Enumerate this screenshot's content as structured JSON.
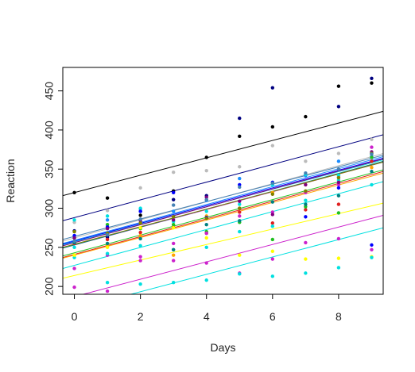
{
  "chart_data": {
    "type": "scatter",
    "title": "",
    "xlabel": "Days",
    "ylabel": "Reaction",
    "xlim": [
      -0.35,
      9.35
    ],
    "ylim": [
      190,
      480
    ],
    "xticks": [
      0,
      2,
      4,
      6,
      8
    ],
    "yticks": [
      200,
      250,
      300,
      350,
      400,
      450
    ],
    "grid": false,
    "legend": "none",
    "series": [
      {
        "color": "#000000",
        "points": [
          [
            0,
            320
          ],
          [
            1,
            313
          ],
          [
            2,
            291
          ],
          [
            3,
            322
          ],
          [
            4,
            365
          ],
          [
            5,
            392
          ],
          [
            6,
            404
          ],
          [
            7,
            417
          ],
          [
            8,
            456
          ],
          [
            9,
            460
          ]
        ],
        "line": [
          320,
          420
        ]
      },
      {
        "color": "#000080",
        "points": [
          [
            0,
            271
          ],
          [
            1,
            263
          ],
          [
            2,
            296
          ],
          [
            3,
            311
          ],
          [
            4,
            316
          ],
          [
            5,
            415
          ],
          [
            6,
            454
          ],
          [
            7,
            342
          ],
          [
            8,
            430
          ],
          [
            9,
            466
          ]
        ],
        "line": [
          288,
          390
        ]
      },
      {
        "color": "#bbbbbb",
        "points": [
          [
            0,
            282
          ],
          [
            1,
            297
          ],
          [
            2,
            326
          ],
          [
            3,
            346
          ],
          [
            4,
            348
          ],
          [
            5,
            353
          ],
          [
            6,
            380
          ],
          [
            7,
            360
          ],
          [
            8,
            370
          ],
          [
            9,
            388
          ]
        ],
        "line": [
          262,
          366
        ]
      },
      {
        "color": "#1a8cff",
        "points": [
          [
            0,
            265
          ],
          [
            1,
            285
          ],
          [
            2,
            299
          ],
          [
            3,
            296
          ],
          [
            4,
            310
          ],
          [
            5,
            338
          ],
          [
            6,
            333
          ],
          [
            7,
            342
          ],
          [
            8,
            360
          ],
          [
            9,
            366
          ]
        ],
        "line": [
          259,
          362
        ]
      },
      {
        "color": "#00e0e0",
        "points": [
          [
            0,
            285
          ],
          [
            1,
            290
          ],
          [
            2,
            300
          ],
          [
            3,
            283
          ],
          [
            4,
            296
          ],
          [
            5,
            305
          ],
          [
            6,
            330
          ],
          [
            7,
            343
          ],
          [
            8,
            336
          ],
          [
            9,
            370
          ]
        ],
        "line": [
          257,
          358
        ]
      },
      {
        "color": "#e02020",
        "points": [
          [
            0,
            255
          ],
          [
            1,
            260
          ],
          [
            2,
            269
          ],
          [
            3,
            276
          ],
          [
            4,
            268
          ],
          [
            5,
            295
          ],
          [
            6,
            281
          ],
          [
            7,
            298
          ],
          [
            8,
            305
          ],
          [
            9,
            360
          ]
        ],
        "line": [
          241,
          343
        ]
      },
      {
        "color": "#20c020",
        "points": [
          [
            0,
            262
          ],
          [
            1,
            279
          ],
          [
            2,
            274
          ],
          [
            3,
            279
          ],
          [
            4,
            270
          ],
          [
            5,
            282
          ],
          [
            6,
            260
          ],
          [
            7,
            302
          ],
          [
            8,
            294
          ],
          [
            9,
            365
          ]
        ],
        "line": [
          243,
          345
        ]
      },
      {
        "color": "#ffa500",
        "points": [
          [
            0,
            240
          ],
          [
            1,
            252
          ],
          [
            2,
            265
          ],
          [
            3,
            240
          ],
          [
            4,
            290
          ],
          [
            5,
            300
          ],
          [
            6,
            320
          ],
          [
            7,
            330
          ],
          [
            8,
            340
          ],
          [
            9,
            352
          ]
        ],
        "line": [
          240,
          341
        ]
      },
      {
        "color": "#cc22cc",
        "points": [
          [
            0,
            223
          ],
          [
            1,
            240
          ],
          [
            2,
            233
          ],
          [
            3,
            255
          ],
          [
            4,
            268
          ],
          [
            5,
            290
          ],
          [
            6,
            295
          ],
          [
            7,
            320
          ],
          [
            8,
            330
          ],
          [
            9,
            378
          ]
        ],
        "line": [
          253,
          355
        ]
      },
      {
        "color": "#00e0e0",
        "points": [
          [
            0,
            237
          ],
          [
            1,
            242
          ],
          [
            2,
            252
          ],
          [
            3,
            247
          ],
          [
            4,
            250
          ],
          [
            5,
            270
          ],
          [
            6,
            277
          ],
          [
            7,
            310
          ],
          [
            8,
            342
          ],
          [
            9,
            330
          ]
        ],
        "line": [
          227,
          330
        ]
      },
      {
        "color": "#ffff00",
        "points": [
          [
            0,
            240
          ],
          [
            1,
            250
          ],
          [
            2,
            275
          ],
          [
            3,
            275
          ],
          [
            4,
            262
          ],
          [
            5,
            240
          ],
          [
            6,
            245
          ],
          [
            7,
            235
          ],
          [
            8,
            236
          ],
          [
            9,
            238
          ]
        ],
        "line": [
          214,
          303
        ]
      },
      {
        "color": "#cc22cc",
        "points": [
          [
            0,
            199
          ],
          [
            1,
            194
          ],
          [
            2,
            238
          ],
          [
            3,
            233
          ],
          [
            4,
            230
          ],
          [
            5,
            217
          ],
          [
            6,
            235
          ],
          [
            7,
            256
          ],
          [
            8,
            261
          ],
          [
            9,
            247
          ]
        ],
        "line": [
          187,
          287
        ]
      },
      {
        "color": "#00e0e0",
        "points": [
          [
            0,
            250
          ],
          [
            1,
            205
          ],
          [
            2,
            203
          ],
          [
            3,
            205
          ],
          [
            4,
            208
          ],
          [
            5,
            216
          ],
          [
            6,
            213
          ],
          [
            7,
            217
          ],
          [
            8,
            224
          ],
          [
            9,
            237
          ]
        ],
        "line": [
          171,
          271
        ]
      },
      {
        "color": "#0000ff",
        "points": [
          [
            0,
            265
          ],
          [
            1,
            276
          ],
          [
            2,
            296
          ],
          [
            3,
            320
          ],
          [
            4,
            288
          ],
          [
            5,
            330
          ],
          [
            6,
            333
          ],
          [
            7,
            289
          ],
          [
            8,
            326
          ],
          [
            9,
            253
          ]
        ],
        "line": [
          258,
          360
        ]
      },
      {
        "color": "#008080",
        "points": [
          [
            0,
            256
          ],
          [
            1,
            255
          ],
          [
            2,
            261
          ],
          [
            3,
            247
          ],
          [
            4,
            279
          ],
          [
            5,
            284
          ],
          [
            6,
            308
          ],
          [
            7,
            305
          ],
          [
            8,
            316
          ],
          [
            9,
            347
          ]
        ],
        "line": [
          253,
          356
        ]
      },
      {
        "color": "#800080",
        "points": [
          [
            0,
            262
          ],
          [
            1,
            274
          ],
          [
            2,
            284
          ],
          [
            3,
            285
          ],
          [
            4,
            314
          ],
          [
            5,
            309
          ],
          [
            6,
            292
          ],
          [
            7,
            330
          ],
          [
            8,
            333
          ],
          [
            9,
            372
          ]
        ],
        "line": [
          256,
          359
        ]
      },
      {
        "color": "#808000",
        "points": [
          [
            0,
            270
          ],
          [
            1,
            268
          ],
          [
            2,
            281
          ],
          [
            3,
            289
          ],
          [
            4,
            287
          ],
          [
            5,
            300
          ],
          [
            6,
            318
          ],
          [
            7,
            322
          ],
          [
            8,
            339
          ],
          [
            9,
            370
          ]
        ],
        "line": [
          254,
          355
        ]
      },
      {
        "color": "#4682b4",
        "points": [
          [
            0,
            258
          ],
          [
            1,
            266
          ],
          [
            2,
            286
          ],
          [
            3,
            304
          ],
          [
            4,
            311
          ],
          [
            5,
            327
          ],
          [
            6,
            332
          ],
          [
            7,
            345
          ],
          [
            8,
            350
          ],
          [
            9,
            369
          ]
        ],
        "line": [
          264,
          364
        ]
      }
    ]
  }
}
